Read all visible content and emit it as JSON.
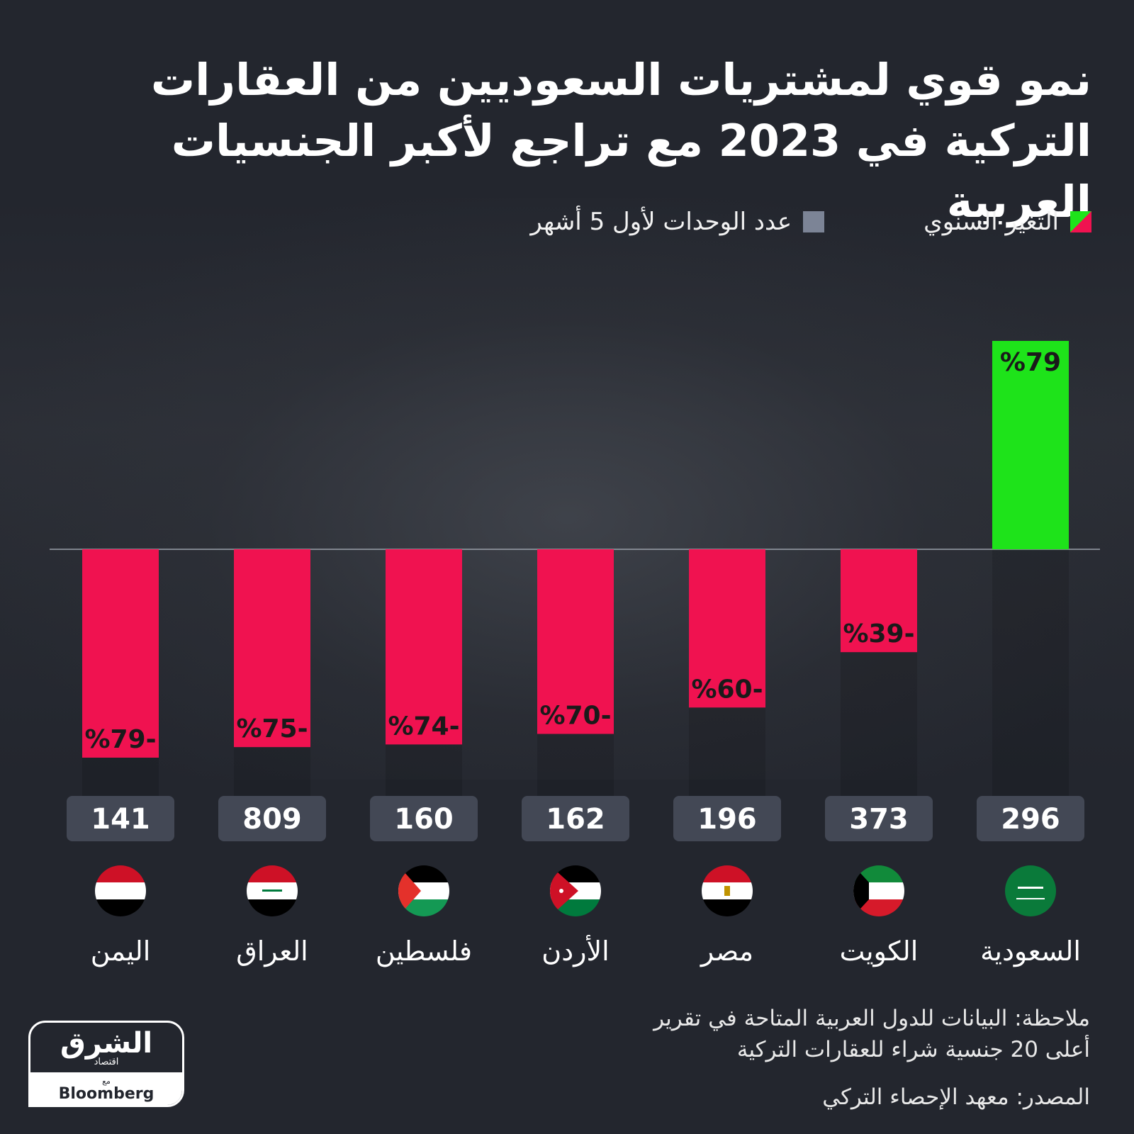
{
  "title": {
    "line1": "نمو قوي لمشتريات السعوديين من العقارات",
    "line2": "التركية في 2023 مع تراجع لأكبر الجنسيات العربية"
  },
  "legend": {
    "change_label": "التغير السنوي",
    "units_label": "عدد الوحدات لأول 5 أشهر"
  },
  "colors": {
    "positive": "#1ee31a",
    "negative": "#f01250",
    "unit_box": "#434855",
    "background": "#23262e"
  },
  "chart_data": {
    "type": "bar",
    "categories": [
      "السعودية",
      "الكويت",
      "مصر",
      "الأردن",
      "فلسطين",
      "العراق",
      "اليمن"
    ],
    "series": [
      {
        "name": "التغير السنوي",
        "values": [
          79,
          -39,
          -60,
          -70,
          -74,
          -75,
          -79
        ]
      },
      {
        "name": "عدد الوحدات لأول 5 أشهر",
        "values": [
          296,
          373,
          196,
          162,
          160,
          809,
          141
        ]
      }
    ],
    "change_labels": [
      "%79",
      "%39-",
      "%60-",
      "%70-",
      "%74-",
      "%75-",
      "%79-"
    ],
    "unit_labels": [
      "296",
      "373",
      "196",
      "162",
      "160",
      "809",
      "141"
    ],
    "flags": [
      "saudi-flag-icon",
      "kuwait-flag-icon",
      "egypt-flag-icon",
      "jordan-flag-icon",
      "palestine-flag-icon",
      "iraq-flag-icon",
      "yemen-flag-icon"
    ],
    "category_order": "right-to-left",
    "ylim": [
      -79,
      79
    ],
    "grid": false,
    "legend_position": "top"
  },
  "note": {
    "line1": "ملاحظة: البيانات للدول العربية المتاحة في تقرير",
    "line2": "أعلى 20 جنسية شراء للعقارات التركية"
  },
  "source": "المصدر: معهد الإحصاء التركي",
  "logo": {
    "brand": "الشرق",
    "sub": "اقتصاد",
    "with": "مع",
    "partner": "Bloomberg"
  }
}
